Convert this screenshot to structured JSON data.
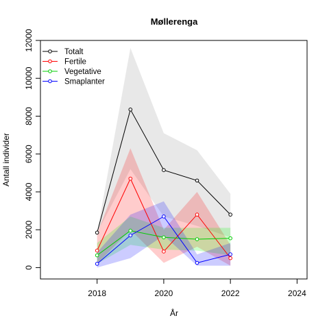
{
  "chart_data": {
    "type": "line",
    "title": "Møllerenga",
    "xlabel": "År",
    "ylabel": "Antall individer",
    "xlim": [
      2016.3,
      2024.3
    ],
    "ylim": [
      -600,
      12000
    ],
    "x_ticks": [
      2018,
      2020,
      2022,
      2024
    ],
    "y_ticks": [
      0,
      2000,
      4000,
      6000,
      8000,
      10000,
      12000
    ],
    "legend_position": "top-left",
    "grid": false,
    "x": [
      2018,
      2019,
      2020,
      2021,
      2022
    ],
    "series": [
      {
        "name": "Totalt",
        "color": "#000000",
        "band_color": "#bebebe",
        "values": [
          1850,
          8350,
          5150,
          4600,
          2800
        ],
        "lower": [
          1850,
          5200,
          2700,
          2200,
          1600
        ],
        "upper": [
          1850,
          11600,
          7100,
          6200,
          3900
        ]
      },
      {
        "name": "Fertile",
        "color": "#ff0000",
        "band_color": "#ff0000",
        "values": [
          900,
          4700,
          850,
          2800,
          500
        ],
        "lower": [
          200,
          2000,
          250,
          1100,
          100
        ],
        "upper": [
          1800,
          6300,
          2000,
          4000,
          1200
        ]
      },
      {
        "name": "Vegetative",
        "color": "#00cc00",
        "band_color": "#00ff00",
        "values": [
          650,
          1950,
          1600,
          1500,
          1550
        ],
        "lower": [
          200,
          1200,
          950,
          900,
          650
        ],
        "upper": [
          1300,
          2700,
          2100,
          2100,
          2100
        ]
      },
      {
        "name": "Smaplanter",
        "color": "#0000ff",
        "band_color": "#0000ff",
        "values": [
          200,
          1700,
          2700,
          250,
          700
        ],
        "lower": [
          0,
          500,
          1700,
          100,
          100
        ],
        "upper": [
          800,
          2800,
          3500,
          700,
          1300
        ]
      }
    ]
  }
}
